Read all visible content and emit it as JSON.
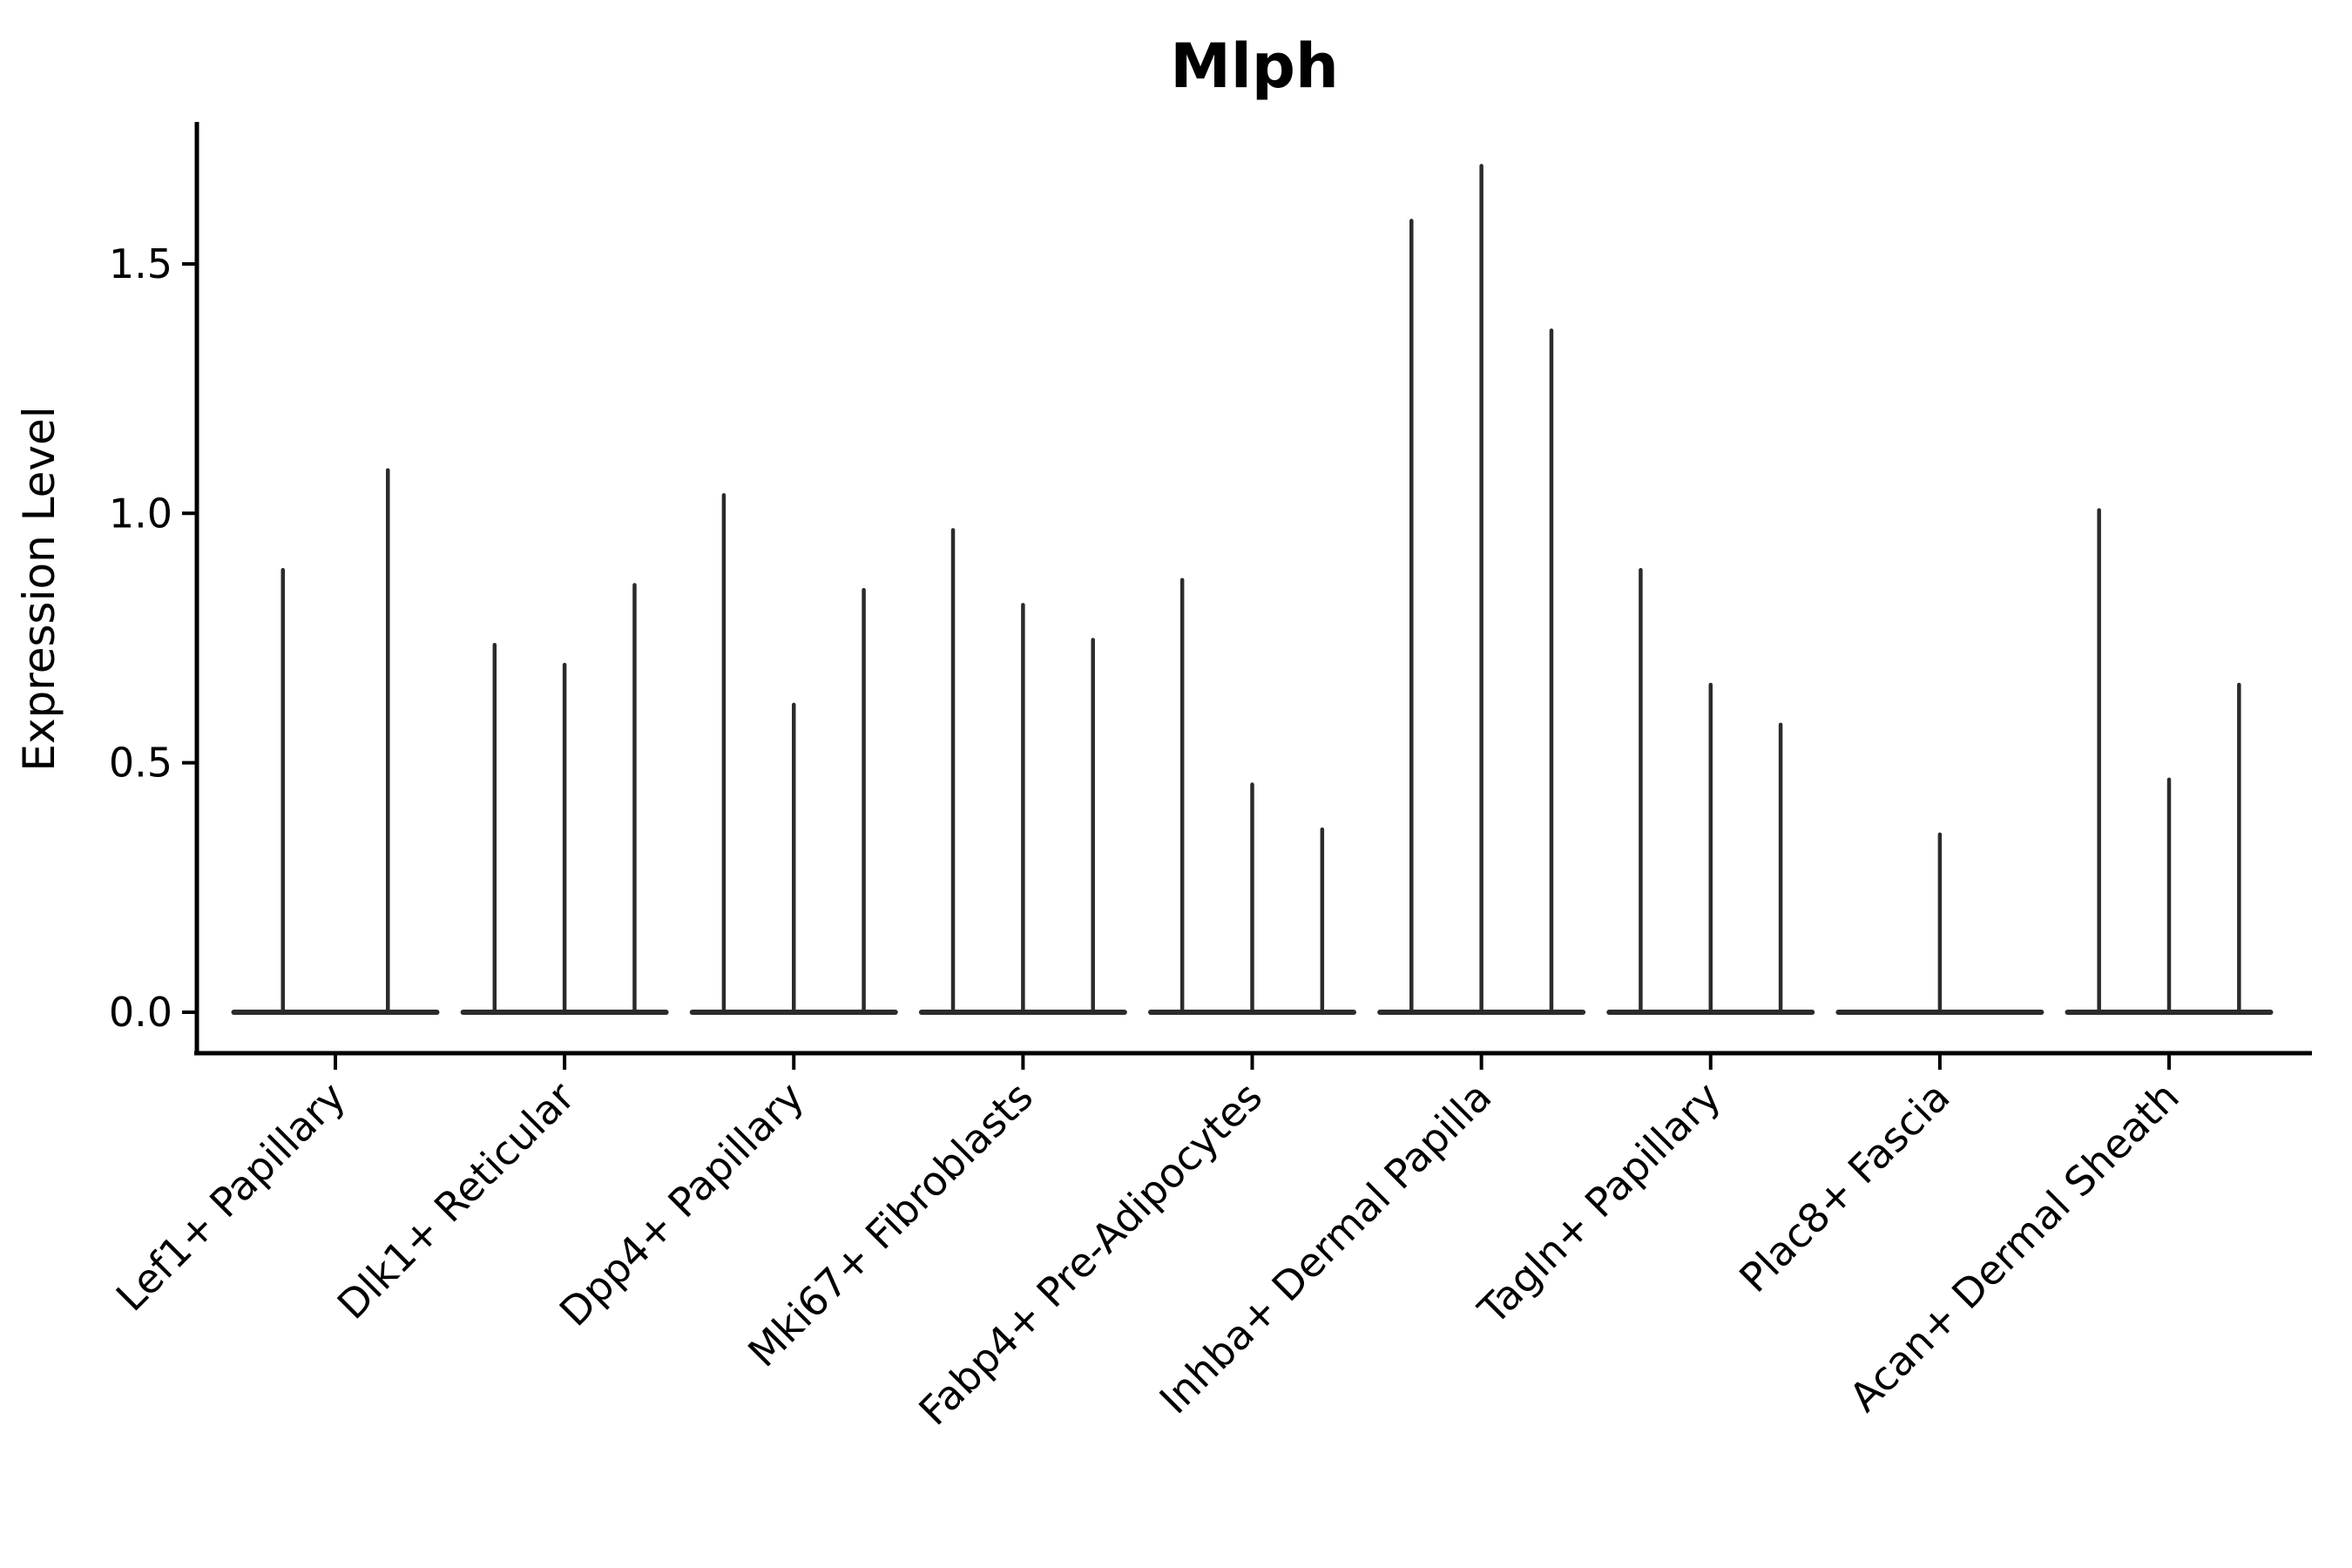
{
  "figure": {
    "title": "Mlph",
    "ylabel": "Expression Level"
  },
  "chart_data": {
    "type": "violin",
    "title": "Mlph",
    "xlabel": "",
    "ylabel": "Expression Level",
    "grid": false,
    "legend": "none",
    "ytick_labels": [
      "0.0",
      "0.5",
      "1.0",
      "1.5"
    ],
    "ytick_values": [
      0.0,
      0.5,
      1.0,
      1.5
    ],
    "ylim": [
      -0.08,
      1.78
    ],
    "x_tick_rotation_deg": 45,
    "baseline_value": 0.0,
    "categories": [
      "Lef1+ Papillary",
      "Dlk1+ Reticular",
      "Dpp4+ Papillary",
      "Mki67+ Fibroblasts",
      "Fabp4+ Pre-Adipocytes",
      "Inhba+ Dermal Papilla",
      "Tagln+ Papillary",
      "Plac8+ Fascia",
      "Acan+ Dermal Sheath"
    ],
    "groups": [
      {
        "category": "Lef1+ Papillary",
        "violin_maxima": [
          0.89,
          1.09
        ]
      },
      {
        "category": "Dlk1+ Reticular",
        "violin_maxima": [
          0.74,
          0.7,
          0.86
        ]
      },
      {
        "category": "Dpp4+ Papillary",
        "violin_maxima": [
          1.04,
          0.62,
          0.85
        ]
      },
      {
        "category": "Mki67+ Fibroblasts",
        "violin_maxima": [
          0.97,
          0.82,
          0.75
        ]
      },
      {
        "category": "Fabp4+ Pre-Adipocytes",
        "violin_maxima": [
          0.87,
          0.46,
          0.37
        ]
      },
      {
        "category": "Inhba+ Dermal Papilla",
        "violin_maxima": [
          1.59,
          1.7,
          1.37
        ]
      },
      {
        "category": "Tagln+ Papillary",
        "violin_maxima": [
          0.89,
          0.66,
          0.58
        ]
      },
      {
        "category": "Plac8+ Fascia",
        "violin_maxima": [
          0.36
        ]
      },
      {
        "category": "Acan+ Dermal Sheath",
        "violin_maxima": [
          1.01,
          0.47,
          0.66
        ]
      }
    ],
    "colors": {
      "violin_line": "#2b2b2b",
      "axis": "#000000",
      "text": "#000000",
      "background": "#ffffff"
    }
  }
}
